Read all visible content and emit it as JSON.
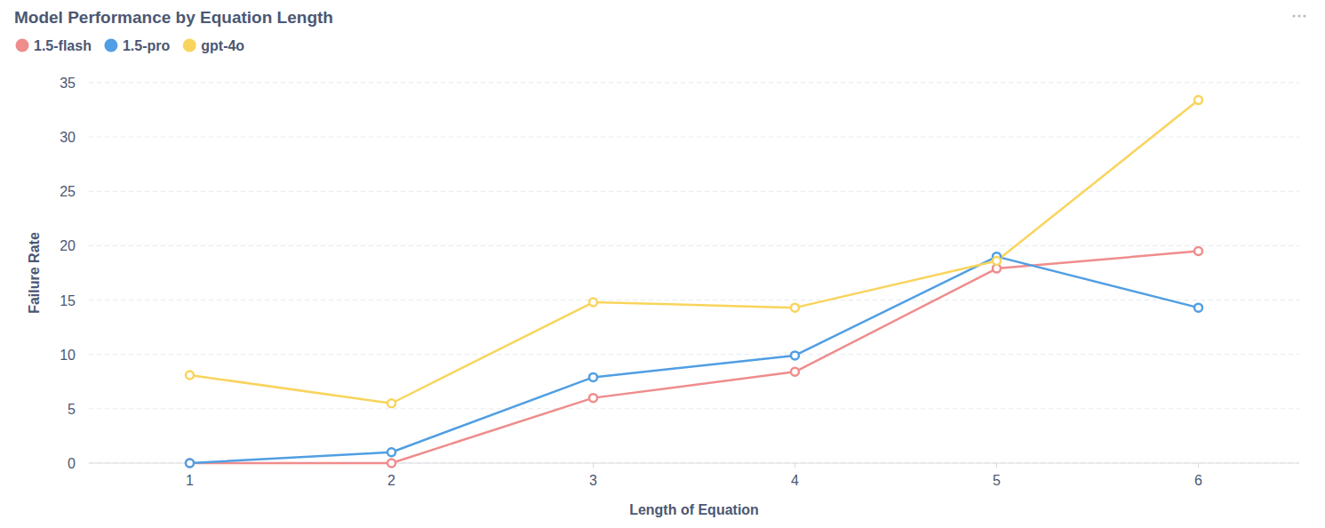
{
  "chart_data": {
    "type": "line",
    "title": "Model Performance by Equation Length",
    "x_label": "Length of Equation",
    "y_label": "Failure Rate",
    "x": [
      1,
      2,
      3,
      4,
      5,
      6
    ],
    "xlim": [
      0.5,
      6.5
    ],
    "xticks": [
      1,
      2,
      3,
      4,
      5,
      6
    ],
    "ylim": [
      0,
      35
    ],
    "yticks": [
      0,
      5,
      10,
      15,
      20,
      25,
      30,
      35
    ],
    "grid": true,
    "legend": "top-left",
    "marker": "circle",
    "line_style": "solid",
    "series": [
      {
        "name": "1.5-flash",
        "color": "#ef8c8c",
        "values": [
          0,
          0,
          6.0,
          8.4,
          17.9,
          19.5
        ]
      },
      {
        "name": "1.5-pro",
        "color": "#509ee3",
        "values": [
          0,
          1.0,
          7.9,
          9.9,
          19.0,
          14.3
        ]
      },
      {
        "name": "gpt-4o",
        "color": "#f9d45c",
        "values": [
          8.1,
          5.5,
          14.8,
          14.3,
          18.6,
          33.4
        ]
      }
    ]
  }
}
